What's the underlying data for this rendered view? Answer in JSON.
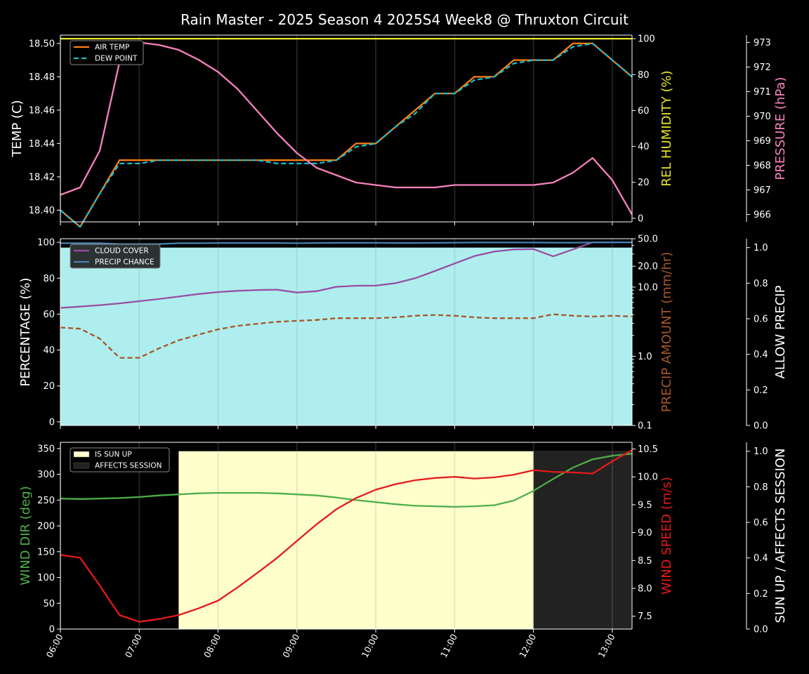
{
  "title": "Rain Master - 2025 Season 4 2025S4 Week8 @ Thruxton Circuit",
  "x_ticks": [
    "06:00",
    "07:00",
    "08:00",
    "09:00",
    "10:00",
    "11:00",
    "12:00",
    "13:00"
  ],
  "colors": {
    "air_temp": "#ff7f0e",
    "dew_point": "#17becf",
    "humidity": "#e6e62a",
    "pressure": "#f781bf",
    "cloud": "#984ea3",
    "precip_chance": "#4682b4",
    "precip_amount": "#a65628",
    "allow_precip_fill": "#afeeee",
    "wind_dir": "#4daf4a",
    "wind_speed": "#e41a1c",
    "sun_up": "#ffffcc",
    "affects": "#222222"
  },
  "chart_data": [
    {
      "type": "line",
      "panel": "temperature",
      "x": [
        "06:00",
        "06:15",
        "06:30",
        "06:45",
        "07:00",
        "07:15",
        "07:30",
        "07:45",
        "08:00",
        "08:15",
        "08:30",
        "08:45",
        "09:00",
        "09:15",
        "09:30",
        "09:45",
        "10:00",
        "10:15",
        "10:30",
        "10:45",
        "11:00",
        "11:15",
        "11:30",
        "11:45",
        "12:00",
        "12:15",
        "12:30",
        "12:45",
        "13:00",
        "13:15"
      ],
      "y_left": {
        "label": "TEMP (C)",
        "range": [
          18.393,
          18.505
        ],
        "ticks": [
          "18.40",
          "18.42",
          "18.44",
          "18.46",
          "18.48",
          "18.50"
        ]
      },
      "y_right": {
        "label": "REL HUMIDITY (%)",
        "range": [
          -2,
          102
        ],
        "ticks": [
          "0",
          "20",
          "40",
          "60",
          "80",
          "100"
        ]
      },
      "y_far_right": {
        "label": "PRESSURE (hPa)",
        "range": [
          965.7,
          973.3
        ],
        "ticks": [
          "966",
          "967",
          "968",
          "969",
          "970",
          "971",
          "972",
          "973"
        ]
      },
      "legend": {
        "placement": "top-left",
        "entries": [
          "AIR TEMP",
          "DEW POINT"
        ]
      },
      "series": [
        {
          "name": "AIR TEMP",
          "axis": "left",
          "values": [
            18.4,
            18.39,
            18.41,
            18.43,
            18.43,
            18.43,
            18.43,
            18.43,
            18.43,
            18.43,
            18.43,
            18.43,
            18.43,
            18.43,
            18.43,
            18.44,
            18.44,
            18.45,
            18.46,
            18.47,
            18.47,
            18.48,
            18.48,
            18.49,
            18.49,
            18.49,
            18.5,
            18.5,
            18.49,
            18.48
          ]
        },
        {
          "name": "DEW POINT",
          "axis": "left",
          "style": "dashed",
          "values": [
            18.4,
            18.39,
            18.41,
            18.428,
            18.428,
            18.43,
            18.43,
            18.43,
            18.43,
            18.43,
            18.43,
            18.428,
            18.428,
            18.428,
            18.43,
            18.438,
            18.44,
            18.45,
            18.458,
            18.47,
            18.47,
            18.478,
            18.48,
            18.488,
            18.49,
            18.49,
            18.498,
            18.5,
            18.49,
            18.48
          ]
        },
        {
          "axis": "right",
          "values": [
            100,
            100,
            100,
            100,
            100,
            100,
            100,
            100,
            100,
            100,
            100,
            100,
            100,
            100,
            100,
            100,
            100,
            100,
            100,
            100,
            100,
            100,
            100,
            100,
            100,
            100,
            100,
            100,
            100,
            100
          ]
        },
        {
          "axis": "far_right",
          "values": [
            966.8,
            967.1,
            968.6,
            972.2,
            973.0,
            972.9,
            972.7,
            972.3,
            971.8,
            971.1,
            970.2,
            969.3,
            968.5,
            967.9,
            967.6,
            967.3,
            967.2,
            967.1,
            967.1,
            967.1,
            967.2,
            967.2,
            967.2,
            967.2,
            967.2,
            967.3,
            967.7,
            968.3,
            967.4,
            966.0
          ]
        }
      ]
    },
    {
      "type": "line",
      "panel": "precipitation",
      "x": [
        "06:00",
        "06:15",
        "06:30",
        "06:45",
        "07:00",
        "07:15",
        "07:30",
        "07:45",
        "08:00",
        "08:15",
        "08:30",
        "08:45",
        "09:00",
        "09:15",
        "09:30",
        "09:45",
        "10:00",
        "10:15",
        "10:30",
        "10:45",
        "11:00",
        "11:15",
        "11:30",
        "11:45",
        "12:00",
        "12:15",
        "12:30",
        "12:45",
        "13:00",
        "13:15"
      ],
      "y_left": {
        "label": "PERCENTAGE (%)",
        "range": [
          -2,
          102
        ],
        "ticks": [
          "0",
          "20",
          "40",
          "60",
          "80",
          "100"
        ]
      },
      "y_right": {
        "label": "PRECIP AMOUNT (mm/hr)",
        "scale": "log",
        "range": [
          0.1,
          50
        ],
        "ticks": [
          "0.1",
          "1.0",
          "10.0",
          "20.0",
          "50.0"
        ]
      },
      "y_far_right": {
        "label": "ALLOW PRECIP",
        "range": [
          0,
          1.05
        ],
        "ticks": [
          "0.0",
          "0.2",
          "0.4",
          "0.6",
          "0.8",
          "1.0"
        ]
      },
      "legend": {
        "placement": "top-left",
        "entries": [
          "CLOUD COVER",
          "PRECIP CHANCE"
        ]
      },
      "series": [
        {
          "name": "CLOUD COVER",
          "axis": "left",
          "values": [
            63.5,
            64.2,
            65,
            66,
            67.2,
            68.4,
            69.8,
            71.2,
            72.3,
            73,
            73.4,
            73.6,
            72,
            72.8,
            75.2,
            75.8,
            75.9,
            77.2,
            80,
            84,
            88.2,
            92.3,
            94.8,
            96,
            96.2,
            92.2,
            96,
            100,
            100,
            100
          ]
        },
        {
          "name": "PRECIP CHANCE",
          "axis": "left",
          "values": [
            99.5,
            99.5,
            99.5,
            99,
            99,
            99,
            99.5,
            99.5,
            99.6,
            99.6,
            99.6,
            99.6,
            99.5,
            99.6,
            99.7,
            99.7,
            99.7,
            99.6,
            99.6,
            99.7,
            99.8,
            99.9,
            99.9,
            99.9,
            99.9,
            99.8,
            99.8,
            99.9,
            100,
            100
          ]
        },
        {
          "axis": "right",
          "style": "dashed",
          "values": [
            2.6,
            2.5,
            1.8,
            0.95,
            0.95,
            1.3,
            1.7,
            2.05,
            2.45,
            2.75,
            2.95,
            3.15,
            3.25,
            3.35,
            3.55,
            3.55,
            3.55,
            3.65,
            3.85,
            3.95,
            3.85,
            3.65,
            3.55,
            3.55,
            3.55,
            4.05,
            3.85,
            3.75,
            3.85,
            3.75
          ]
        },
        {
          "axis": "far_right",
          "style": "filled",
          "values": [
            1,
            1,
            1,
            1,
            1,
            1,
            1,
            1,
            1,
            1,
            1,
            1,
            1,
            1,
            1,
            1,
            1,
            1,
            1,
            1,
            1,
            1,
            1,
            1,
            1,
            1,
            1,
            1,
            1,
            1
          ]
        }
      ]
    },
    {
      "type": "line",
      "panel": "wind",
      "x": [
        "06:00",
        "06:15",
        "06:30",
        "06:45",
        "07:00",
        "07:15",
        "07:30",
        "07:45",
        "08:00",
        "08:15",
        "08:30",
        "08:45",
        "09:00",
        "09:15",
        "09:30",
        "09:45",
        "10:00",
        "10:15",
        "10:30",
        "10:45",
        "11:00",
        "11:15",
        "11:30",
        "11:45",
        "12:00",
        "12:15",
        "12:30",
        "12:45",
        "13:00",
        "13:15"
      ],
      "y_left": {
        "label": "WIND DIR (deg)",
        "range": [
          0,
          362
        ],
        "ticks": [
          "0",
          "50",
          "100",
          "150",
          "200",
          "250",
          "300",
          "350"
        ]
      },
      "y_right": {
        "label": "WIND SPEED (m/s)",
        "range": [
          7.27,
          10.62
        ],
        "ticks": [
          "7.5",
          "8.0",
          "8.5",
          "9.0",
          "9.5",
          "10.0",
          "10.5"
        ]
      },
      "y_far_right": {
        "label": "SUN UP / AFFECTS SESSION",
        "range": [
          0,
          1.05
        ],
        "ticks": [
          "0.0",
          "0.2",
          "0.4",
          "0.6",
          "0.8",
          "1.0"
        ]
      },
      "legend": {
        "placement": "top-left",
        "entries": [
          "IS SUN UP",
          "AFFECTS SESSION"
        ]
      },
      "series": [
        {
          "axis": "left",
          "values": [
            253,
            252,
            253,
            254,
            256,
            259,
            261,
            263,
            264,
            264,
            264,
            263,
            261,
            259,
            255,
            250,
            246,
            242,
            239,
            238,
            237,
            238,
            240,
            249,
            268,
            291,
            313,
            329,
            336,
            340
          ]
        },
        {
          "axis": "right",
          "values": [
            8.6,
            8.55,
            8.05,
            7.52,
            7.4,
            7.45,
            7.52,
            7.64,
            7.78,
            8.02,
            8.28,
            8.55,
            8.85,
            9.15,
            9.42,
            9.62,
            9.77,
            9.87,
            9.94,
            9.98,
            10.0,
            9.97,
            9.99,
            10.04,
            10.12,
            10.09,
            10.08,
            10.06,
            10.28,
            10.48
          ]
        },
        {
          "name": "IS SUN UP",
          "axis": "far_right",
          "style": "band",
          "x_range": [
            "07:30",
            "13:15"
          ],
          "value": 1
        },
        {
          "name": "AFFECTS SESSION",
          "axis": "far_right",
          "style": "band",
          "x_range": [
            "12:00",
            "13:15"
          ],
          "value": 1
        }
      ]
    }
  ]
}
